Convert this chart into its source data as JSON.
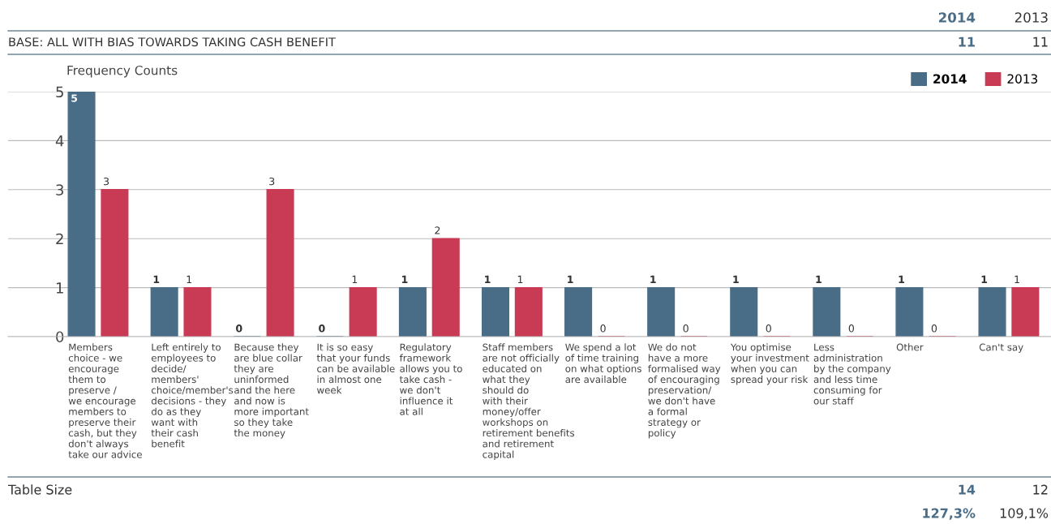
{
  "chart_data": {
    "type": "bar",
    "ylabel": "Frequency Counts",
    "categories": [
      "Members\nchoice - we\nencourage\nthem to\npreserve /\nwe encourage\nmembers to\npreserve their\ncash, but they\ndon't always\ntake our advice",
      "Left entirely to\nemployees to\ndecide/\nmembers'\nchoice/member's\ndecisions - they\ndo as they\nwant with\ntheir cash\nbenefit",
      "Because they\nare blue collar\nthey are\nuninformed\nand the here\nand now is\nmore important\nso they take\nthe money",
      "It is so easy\nthat your funds\ncan be available\nin almost one\nweek",
      "Regulatory\nframework\nallows you to\ntake cash -\nwe don't\ninfluence it\nat all",
      "Staff members\nare not officially\neducated on\nwhat they\nshould do\nwith their\nmoney/offer\nworkshops on\nretirement benefits\nand retirement\ncapital",
      "We spend a lot\nof time training\non what options\nare available",
      "We do not\nhave a more\nformalised way\nof encouraging\npreservation/\nwe don't have\na formal\nstrategy or\npolicy",
      "You optimise\nyour investment\nwhen you can\nspread your risk",
      "Less\nadministration\nby the company\nand less time\nconsuming for\nour staff",
      "Other",
      "Can't say"
    ],
    "series": [
      {
        "name": "2014",
        "color": "#4a6d87",
        "values": [
          5,
          1,
          0,
          0,
          1,
          1,
          1,
          1,
          1,
          1,
          1,
          1
        ]
      },
      {
        "name": "2013",
        "color": "#c93a55",
        "values": [
          3,
          1,
          3,
          1,
          2,
          1,
          0,
          0,
          0,
          0,
          0,
          1
        ]
      }
    ],
    "ylim": [
      0,
      5
    ],
    "yticks": [
      0,
      1,
      2,
      3,
      4,
      5
    ],
    "grid": "y",
    "legend": "top right",
    "data_labels": true,
    "annotations": [
      "2014",
      "2013",
      "BASE: ALL WITH BIAS TOWARDS TAKING CASH BENEFIT",
      "11",
      "11",
      "Table Size",
      "14",
      "12",
      "127,3%",
      "109,1%"
    ]
  }
}
